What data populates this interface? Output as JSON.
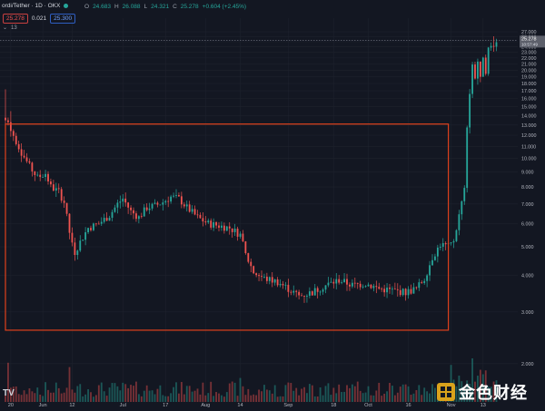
{
  "header": {
    "symbol": "ordi/Tether · 1D · OKX",
    "open_label": "O",
    "open_value": "24.683",
    "high_label": "H",
    "high_value": "26.088",
    "low_label": "L",
    "low_value": "24.321",
    "close_label": "C",
    "close_value": "25.278",
    "change_value": "+0.604 (+2.45%)",
    "sell_price": "25.278",
    "spread": "0.021",
    "buy_price": "25.300",
    "indicator_count": "13"
  },
  "price_badge": {
    "price": "25.278",
    "countdown": "10:57:49"
  },
  "watermark": {
    "text": "金色财经"
  },
  "colors": {
    "up": "#26a69a",
    "down": "#ef5350",
    "highlight_box": "#e0411c",
    "background": "#131722"
  },
  "chart_data": {
    "type": "candlestick",
    "y_scale": "log",
    "ylim": [
      1.9,
      28.0
    ],
    "y_ticks": [
      "27.000",
      "26.000",
      "25.000",
      "24.000",
      "23.000",
      "22.000",
      "21.000",
      "20.000",
      "19.000",
      "18.000",
      "17.000",
      "16.000",
      "15.000",
      "14.000",
      "13.000",
      "12.000",
      "11.000",
      "10.000",
      "9.000",
      "8.000",
      "7.000",
      "6.000",
      "5.000",
      "4.000",
      "3.000",
      "2.000"
    ],
    "x_ticks": [
      {
        "label": "20",
        "date": "2023-05-20"
      },
      {
        "label": "Jun",
        "date": "2023-06-01"
      },
      {
        "label": "12",
        "date": "2023-06-12"
      },
      {
        "label": "Jul",
        "date": "2023-07-01"
      },
      {
        "label": "17",
        "date": "2023-07-17"
      },
      {
        "label": "Aug",
        "date": "2023-08-01"
      },
      {
        "label": "14",
        "date": "2023-08-14"
      },
      {
        "label": "Sep",
        "date": "2023-09-01"
      },
      {
        "label": "18",
        "date": "2023-09-18"
      },
      {
        "label": "Oct",
        "date": "2023-10-01"
      },
      {
        "label": "16",
        "date": "2023-10-16"
      },
      {
        "label": "Nov",
        "date": "2023-11-01"
      },
      {
        "label": "13",
        "date": "2023-11-13"
      }
    ],
    "x_range": [
      "2023-05-18",
      "2023-11-26"
    ],
    "close_path": [
      [
        "2023-05-19",
        13.5
      ],
      [
        "2023-05-21",
        12.0
      ],
      [
        "2023-05-24",
        10.5
      ],
      [
        "2023-05-27",
        9.4
      ],
      [
        "2023-05-30",
        8.6
      ],
      [
        "2023-06-02",
        8.9
      ],
      [
        "2023-06-04",
        8.0
      ],
      [
        "2023-06-07",
        7.7
      ],
      [
        "2023-06-09",
        7.1
      ],
      [
        "2023-06-11",
        5.6
      ],
      [
        "2023-06-13",
        4.8
      ],
      [
        "2023-06-15",
        5.2
      ],
      [
        "2023-06-18",
        5.8
      ],
      [
        "2023-06-22",
        6.0
      ],
      [
        "2023-06-26",
        6.4
      ],
      [
        "2023-06-29",
        7.0
      ],
      [
        "2023-07-01",
        7.3
      ],
      [
        "2023-07-04",
        6.6
      ],
      [
        "2023-07-07",
        6.3
      ],
      [
        "2023-07-10",
        6.8
      ],
      [
        "2023-07-13",
        6.9
      ],
      [
        "2023-07-16",
        7.1
      ],
      [
        "2023-07-19",
        7.4
      ],
      [
        "2023-07-22",
        7.3
      ],
      [
        "2023-07-25",
        6.8
      ],
      [
        "2023-07-29",
        6.3
      ],
      [
        "2023-08-02",
        6.0
      ],
      [
        "2023-08-06",
        5.9
      ],
      [
        "2023-08-10",
        5.8
      ],
      [
        "2023-08-14",
        5.5
      ],
      [
        "2023-08-16",
        4.7
      ],
      [
        "2023-08-19",
        4.1
      ],
      [
        "2023-08-23",
        3.9
      ],
      [
        "2023-08-28",
        3.8
      ],
      [
        "2023-09-01",
        3.6
      ],
      [
        "2023-09-05",
        3.4
      ],
      [
        "2023-09-10",
        3.5
      ],
      [
        "2023-09-15",
        3.7
      ],
      [
        "2023-09-20",
        3.85
      ],
      [
        "2023-09-25",
        3.7
      ],
      [
        "2023-09-30",
        3.75
      ],
      [
        "2023-10-05",
        3.6
      ],
      [
        "2023-10-10",
        3.55
      ],
      [
        "2023-10-15",
        3.5
      ],
      [
        "2023-10-19",
        3.6
      ],
      [
        "2023-10-22",
        3.9
      ],
      [
        "2023-10-25",
        4.6
      ],
      [
        "2023-10-28",
        5.1
      ],
      [
        "2023-10-31",
        5.0
      ],
      [
        "2023-11-02",
        5.2
      ],
      [
        "2023-11-04",
        6.4
      ],
      [
        "2023-11-06",
        7.8
      ],
      [
        "2023-11-07",
        12.5
      ],
      [
        "2023-11-08",
        17.0
      ],
      [
        "2023-11-09",
        20.5
      ],
      [
        "2023-11-10",
        19.0
      ],
      [
        "2023-11-11",
        21.5
      ],
      [
        "2023-11-12",
        18.5
      ],
      [
        "2023-11-13",
        22.5
      ],
      [
        "2023-11-14",
        20.0
      ],
      [
        "2023-11-15",
        23.5
      ],
      [
        "2023-11-16",
        24.0
      ],
      [
        "2023-11-17",
        24.7
      ],
      [
        "2023-11-18",
        25.278
      ]
    ],
    "spikes": [
      {
        "date": "2023-05-18",
        "high": 17.2
      },
      {
        "date": "2023-05-20",
        "high": 14.5
      },
      {
        "date": "2023-11-17",
        "high": 26.088
      }
    ],
    "volume": {
      "shown": true,
      "spikes": [
        {
          "date": "2023-05-19",
          "rel": 0.9
        },
        {
          "date": "2023-06-11",
          "rel": 0.8
        },
        {
          "date": "2023-08-14",
          "rel": 0.55
        },
        {
          "date": "2023-11-01",
          "rel": 0.85
        },
        {
          "date": "2023-11-09",
          "rel": 1.0
        }
      ]
    },
    "annotations": [
      {
        "type": "rectangle",
        "from_date": "2023-05-18",
        "to_date": "2023-10-31",
        "from_price": 2.6,
        "to_price": 13.1,
        "color": "#e0411c"
      }
    ],
    "grid": true,
    "last_price": 25.278
  }
}
